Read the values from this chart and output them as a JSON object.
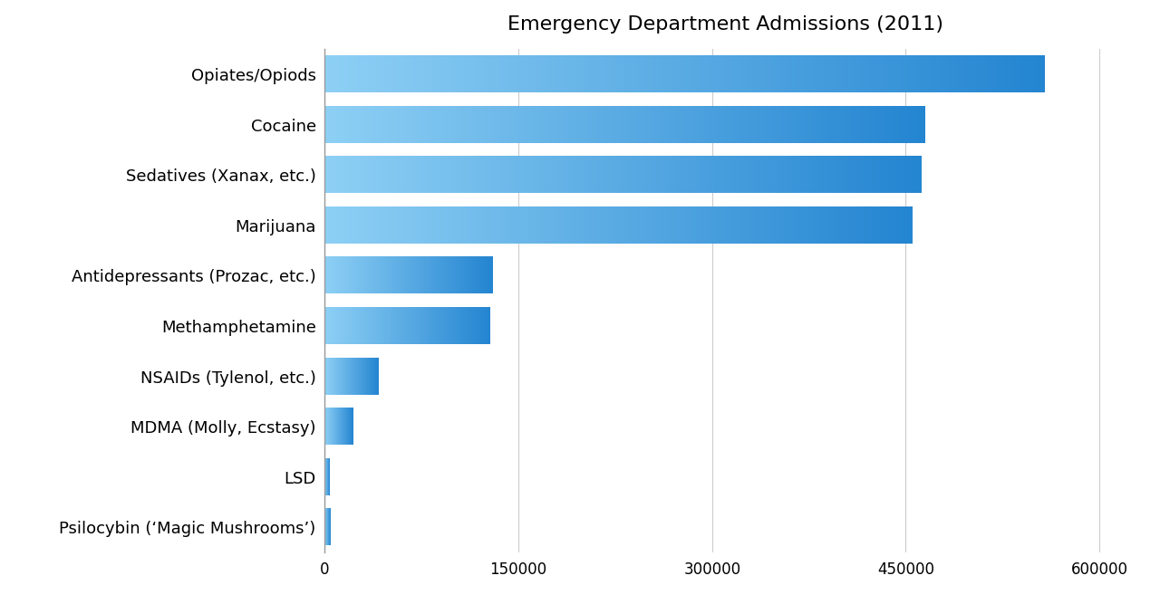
{
  "title": "Emergency Department Admissions (2011)",
  "categories": [
    "Opiates/Opiods",
    "Cocaine",
    "Sedatives (Xanax, etc.)",
    "Marijuana",
    "Antidepressants (Prozac, etc.)",
    "Methamphetamine",
    "NSAIDs (Tylenol, etc.)",
    "MDMA (Molly, Ecstasy)",
    "LSD",
    "Psilocybin (‘Magic Mushrooms’)"
  ],
  "values": [
    558000,
    465000,
    462000,
    455000,
    130000,
    128000,
    42000,
    22000,
    4000,
    4500
  ],
  "bar_color_left": "#8ed0f5",
  "bar_color_right": "#2485d1",
  "xlim": [
    0,
    620000
  ],
  "xticks": [
    0,
    150000,
    300000,
    450000,
    600000
  ],
  "xtick_labels": [
    "0",
    "150000",
    "300000",
    "450000",
    "600000"
  ],
  "background_color": "#ffffff",
  "title_fontsize": 16,
  "label_fontsize": 13,
  "tick_fontsize": 12,
  "bar_height": 0.72,
  "grid_color": "#cccccc"
}
